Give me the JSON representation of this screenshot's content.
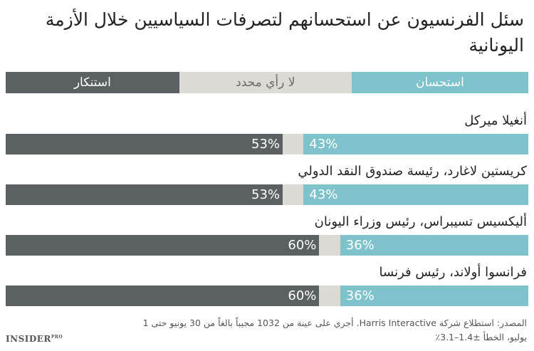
{
  "title": "سئل الفرنسيون عن استحسانهم لتصرفات السياسيين خلال الأزمة اليونانية",
  "colors": {
    "approve": "#7ec3cc",
    "neutral": "#dcdad4",
    "disapprove": "#5b6062"
  },
  "chart_data": {
    "type": "bar",
    "orientation": "horizontal-stacked",
    "categories": [
      "أنغيلا ميركل",
      "كريستين لاغارد، رئيسة صندوق النقد الدولي",
      "أليكسيس تسيبراس، رئيس وزراء اليونان",
      "فرانسوا أولاند، رئيس فرنسا"
    ],
    "series": [
      {
        "name": "استحسان",
        "values": [
          43,
          43,
          36,
          36
        ],
        "labels": [
          "43%",
          "43%",
          "36%",
          "36%"
        ]
      },
      {
        "name": "لا رأي محدد",
        "values": [
          4,
          4,
          4,
          4
        ]
      },
      {
        "name": "استنكار",
        "values": [
          53,
          53,
          60,
          60
        ],
        "labels": [
          "53%",
          "53%",
          "60%",
          "60%"
        ]
      }
    ],
    "xlim": [
      0,
      100
    ]
  },
  "source": "المصدر: استطلاع شركة Harris Interactive. أجري على عينة من 1032 مجيباً بالغاً من 30 يونيو حتى 1 يوليو، الخطأ ±1.4–3.1٪",
  "logo": {
    "text": "INSIDER",
    "suffix": "PRO"
  }
}
